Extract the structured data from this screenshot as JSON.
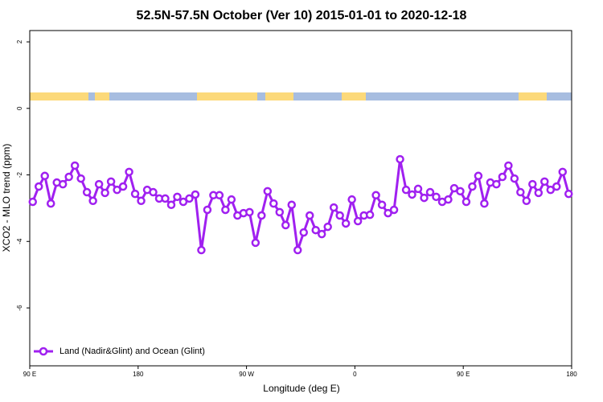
{
  "chart_data": {
    "type": "line",
    "title": "52.5N-57.5N October (Ver 10)   2015-01-01 to 2020-12-18",
    "x_label": "Longitude (deg E)",
    "y_label": "XCO2 - MLO trend (ppm)",
    "xlim": [
      90,
      540
    ],
    "xticks": [
      {
        "value": 90,
        "label": "90 E"
      },
      {
        "value": 180,
        "label": "180"
      },
      {
        "value": 270,
        "label": "90 W"
      },
      {
        "value": 360,
        "label": "0"
      },
      {
        "value": 450,
        "label": "90 E"
      },
      {
        "value": 540,
        "label": "180"
      }
    ],
    "ylim": [
      -7.74,
      2.34
    ],
    "yticks": [
      2,
      0,
      -2,
      -4,
      -6
    ],
    "legend": "bottom-left",
    "x": [
      92.5,
      97.5,
      102.5,
      107.5,
      112.5,
      117.5,
      122.5,
      127.5,
      132.5,
      137.5,
      142.5,
      147.5,
      152.5,
      157.5,
      162.5,
      167.5,
      172.5,
      177.5,
      182.5,
      187.5,
      192.5,
      197.5,
      202.5,
      207.5,
      212.5,
      217.5,
      222.5,
      227.5,
      232.5,
      237.5,
      242.5,
      247.5,
      252.5,
      257.5,
      262.5,
      267.5,
      272.5,
      277.5,
      282.5,
      287.5,
      292.5,
      297.5,
      302.5,
      307.5,
      312.5,
      317.5,
      322.5,
      327.5,
      332.5,
      337.5,
      342.5,
      347.5,
      352.5,
      357.5,
      362.5,
      367.5,
      372.5,
      377.5,
      382.5,
      387.5,
      392.5,
      397.5,
      402.5,
      407.5,
      412.5,
      417.5,
      422.5,
      427.5,
      432.5,
      437.5,
      442.5,
      447.5,
      452.5,
      457.5,
      462.5,
      467.5,
      472.5,
      477.5,
      482.5,
      487.5,
      492.5,
      497.5,
      502.5,
      507.5,
      512.5,
      517.5,
      522.5,
      527.5,
      532.5,
      537.5
    ],
    "series": [
      {
        "name": "Land (Nadir&Glint) and Ocean (Glint)",
        "color": "#a020f0",
        "values": [
          -2.81,
          -2.35,
          -2.03,
          -2.86,
          -2.23,
          -2.28,
          -2.06,
          -1.72,
          -2.11,
          -2.52,
          -2.78,
          -2.28,
          -2.54,
          -2.2,
          -2.45,
          -2.35,
          -1.91,
          -2.57,
          -2.78,
          -2.45,
          -2.52,
          -2.71,
          -2.71,
          -2.9,
          -2.66,
          -2.81,
          -2.71,
          -2.59,
          -4.26,
          -3.05,
          -2.61,
          -2.61,
          -3.05,
          -2.74,
          -3.22,
          -3.15,
          -3.12,
          -4.04,
          -3.22,
          -2.49,
          -2.86,
          -3.12,
          -3.51,
          -2.9,
          -4.26,
          -3.73,
          -3.22,
          -3.66,
          -3.78,
          -3.56,
          -2.98,
          -3.22,
          -3.46,
          -2.74,
          -3.39,
          -3.22,
          -3.2,
          -2.61,
          -2.9,
          -3.15,
          -3.05,
          -1.53,
          -2.45,
          -2.59,
          -2.42,
          -2.69,
          -2.52,
          -2.66,
          -2.81,
          -2.74,
          -2.4,
          -2.49,
          -2.81,
          -2.35,
          -2.03,
          -2.86,
          -2.23,
          -2.28,
          -2.06,
          -1.72,
          -2.11,
          -2.52,
          -2.78,
          -2.28,
          -2.54,
          -2.2,
          -2.45,
          -2.35,
          -1.91,
          -2.57
        ]
      }
    ]
  }
}
